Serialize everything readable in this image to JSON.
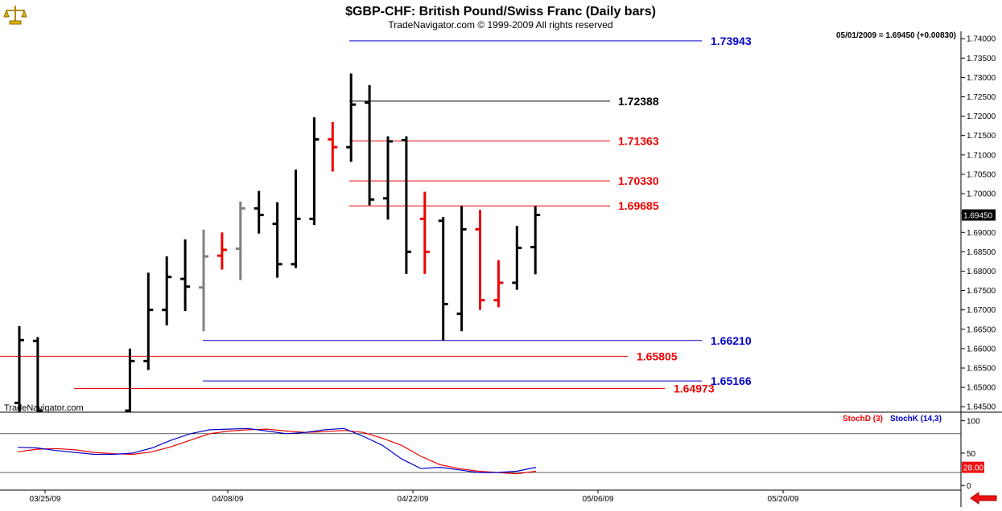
{
  "header": {
    "title": "$GBP-CHF:  British Pound/Swiss Franc  (Daily bars)",
    "subtitle": "TradeNavigator.com © 1999-2009 All rights reserved",
    "quote": "05/01/2009 = 1.69450 (+0.00830)",
    "watermark": "TradeNavigator.com"
  },
  "icons": {
    "logo": "scales-logo-icon",
    "nav": "red-left-arrow-icon"
  },
  "colors": {
    "up": "#000000",
    "down": "#ee0000",
    "neutral": "#808080",
    "blue": "#0000cc",
    "red": "#dd0000",
    "stochD": "#ee0000",
    "stochK": "#0000cc"
  },
  "chart_data": [
    {
      "type": "ohlc",
      "title": "$GBP-CHF:  British Pound/Swiss Franc  (Daily bars)",
      "ylim": [
        1.6436,
        1.7419
      ],
      "yticks": [
        "1.74000",
        "1.73500",
        "1.73000",
        "1.72500",
        "1.72000",
        "1.71500",
        "1.71000",
        "1.70500",
        "1.70000",
        "1.69500",
        "1.69000",
        "1.68500",
        "1.68000",
        "1.67500",
        "1.67000",
        "1.66500",
        "1.66000",
        "1.65500",
        "1.65000",
        "1.64500"
      ],
      "last_price": "1.69450",
      "xticks": [
        "03/25/09",
        "04/08/09",
        "04/22/09",
        "05/06/09",
        "05/20/09"
      ],
      "bars": [
        {
          "date": "03/24/09",
          "open": 1.646,
          "high": 1.6658,
          "low": 1.6436,
          "close": 1.6622,
          "color": "black"
        },
        {
          "date": "03/25/09",
          "open": 1.662,
          "high": 1.663,
          "low": 1.6436,
          "close": 1.644,
          "color": "black"
        },
        {
          "date": "03/30/09",
          "open": 1.644,
          "high": 1.66,
          "low": 1.6436,
          "close": 1.6568,
          "color": "black"
        },
        {
          "date": "03/31/09",
          "open": 1.6568,
          "high": 1.6796,
          "low": 1.6545,
          "close": 1.67,
          "color": "black"
        },
        {
          "date": "04/01/09",
          "open": 1.67,
          "high": 1.6838,
          "low": 1.666,
          "close": 1.6785,
          "color": "black"
        },
        {
          "date": "04/02/09",
          "open": 1.678,
          "high": 1.6882,
          "low": 1.6697,
          "close": 1.676,
          "color": "black"
        },
        {
          "date": "04/03/09",
          "open": 1.6758,
          "high": 1.6907,
          "low": 1.6645,
          "close": 1.6838,
          "color": "gray"
        },
        {
          "date": "04/06/09",
          "open": 1.684,
          "high": 1.69,
          "low": 1.6804,
          "close": 1.6855,
          "color": "red"
        },
        {
          "date": "04/07/09",
          "open": 1.6858,
          "high": 1.698,
          "low": 1.6777,
          "close": 1.6962,
          "color": "gray"
        },
        {
          "date": "04/08/09",
          "open": 1.6962,
          "high": 1.7007,
          "low": 1.6897,
          "close": 1.6945,
          "color": "black"
        },
        {
          "date": "04/09/09",
          "open": 1.6922,
          "high": 1.6978,
          "low": 1.6783,
          "close": 1.6818,
          "color": "black"
        },
        {
          "date": "04/10/09",
          "open": 1.6818,
          "high": 1.7062,
          "low": 1.6808,
          "close": 1.6935,
          "color": "black"
        },
        {
          "date": "04/13/09",
          "open": 1.6935,
          "high": 1.7197,
          "low": 1.6919,
          "close": 1.714,
          "color": "black"
        },
        {
          "date": "04/14/09",
          "open": 1.714,
          "high": 1.7185,
          "low": 1.7057,
          "close": 1.712,
          "color": "red"
        },
        {
          "date": "04/15/09",
          "open": 1.712,
          "high": 1.731,
          "low": 1.7082,
          "close": 1.723,
          "color": "black"
        },
        {
          "date": "04/16/09",
          "open": 1.7235,
          "high": 1.728,
          "low": 1.697,
          "close": 1.6985,
          "color": "black"
        },
        {
          "date": "04/17/09",
          "open": 1.6988,
          "high": 1.7148,
          "low": 1.6933,
          "close": 1.7135,
          "color": "black"
        },
        {
          "date": "04/20/09",
          "open": 1.7138,
          "high": 1.7148,
          "low": 1.6793,
          "close": 1.685,
          "color": "black"
        },
        {
          "date": "04/21/09",
          "open": 1.6935,
          "high": 1.7005,
          "low": 1.6793,
          "close": 1.685,
          "color": "red"
        },
        {
          "date": "04/22/09",
          "open": 1.693,
          "high": 1.694,
          "low": 1.6621,
          "close": 1.6715,
          "color": "black"
        },
        {
          "date": "04/23/09",
          "open": 1.669,
          "high": 1.6968,
          "low": 1.6645,
          "close": 1.6908,
          "color": "black"
        },
        {
          "date": "04/24/09",
          "open": 1.6908,
          "high": 1.6958,
          "low": 1.67,
          "close": 1.6725,
          "color": "red"
        },
        {
          "date": "04/27/09",
          "open": 1.6725,
          "high": 1.6828,
          "low": 1.6707,
          "close": 1.677,
          "color": "red"
        },
        {
          "date": "04/28/09",
          "open": 1.677,
          "high": 1.6917,
          "low": 1.6752,
          "close": 1.686,
          "color": "black"
        },
        {
          "date": "04/29/09",
          "open": 1.6862,
          "high": 1.6968,
          "low": 1.6792,
          "close": 1.6945,
          "color": "black"
        }
      ],
      "levels": [
        {
          "label": "1.73943",
          "value": 1.73943,
          "color": "blue"
        },
        {
          "label": "1.72388",
          "value": 1.72388,
          "color": "black"
        },
        {
          "label": "1.71363",
          "value": 1.71363,
          "color": "red"
        },
        {
          "label": "1.70330",
          "value": 1.7033,
          "color": "red"
        },
        {
          "label": "1.69685",
          "value": 1.69685,
          "color": "red"
        },
        {
          "label": "1.66210",
          "value": 1.6621,
          "color": "blue"
        },
        {
          "label": "1.65805",
          "value": 1.65805,
          "color": "red"
        },
        {
          "label": "1.65166",
          "value": 1.65166,
          "color": "blue"
        },
        {
          "label": "1.64973",
          "value": 1.64973,
          "color": "red"
        }
      ]
    },
    {
      "type": "line",
      "ylim": [
        -6,
        112
      ],
      "yticks": [
        "100",
        "50",
        "0"
      ],
      "reference_lines": [
        80,
        20
      ],
      "last_value": "28.00",
      "series": [
        {
          "name": "StochD (3)",
          "color": "red",
          "values": [
            52,
            56,
            57,
            55,
            51,
            49,
            48,
            52,
            60,
            70,
            80,
            84,
            86,
            87,
            84,
            82,
            83,
            85,
            82,
            73,
            62,
            45,
            32,
            26,
            22,
            20,
            18,
            22
          ]
        },
        {
          "name": "StochK (14,3)",
          "color": "blue",
          "values": [
            59,
            58,
            54,
            51,
            48,
            48,
            50,
            58,
            70,
            80,
            86,
            87,
            88,
            84,
            80,
            82,
            86,
            88,
            76,
            62,
            41,
            26,
            28,
            24,
            20,
            20,
            22,
            28
          ]
        }
      ],
      "legend": [
        "StochD (3)",
        "StochK (14,3)"
      ]
    }
  ]
}
